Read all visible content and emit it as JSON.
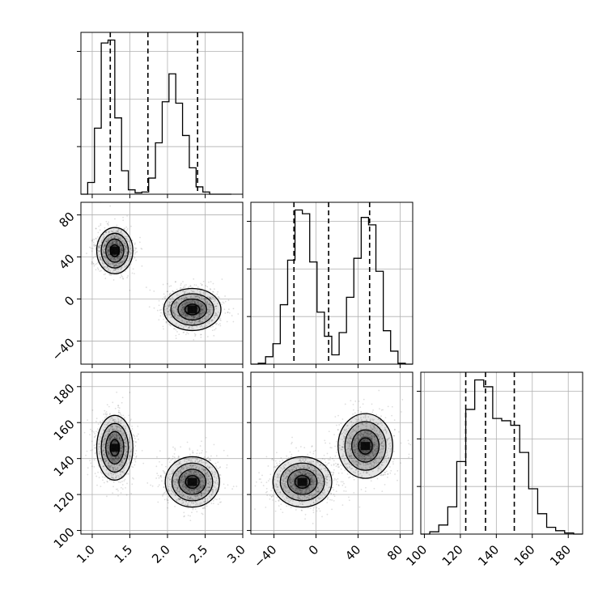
{
  "chart_data": {
    "type": "corner",
    "title": "",
    "variables": [
      "",
      "",
      ""
    ],
    "grid": true,
    "ranges": [
      [
        0.85,
        3.0
      ],
      [
        -62,
        92
      ],
      [
        98,
        188
      ]
    ],
    "ticks": [
      {
        "values": [
          1.0,
          1.5,
          2.0,
          2.5,
          3.0
        ],
        "labels": [
          "1.0",
          "1.5",
          "2.0",
          "2.5",
          "3.0"
        ]
      },
      {
        "values": [
          -40,
          0,
          40,
          80
        ],
        "labels": [
          "−40",
          "0",
          "40",
          "80"
        ]
      },
      {
        "values": [
          100,
          120,
          140,
          160,
          180
        ],
        "labels": [
          "100",
          "120",
          "140",
          "160",
          "180"
        ]
      }
    ],
    "histograms": [
      {
        "variable": 0,
        "bin_edges": [
          0.85,
          0.94,
          1.03,
          1.12,
          1.21,
          1.3,
          1.39,
          1.48,
          1.57,
          1.66,
          1.75,
          1.84,
          1.93,
          2.02,
          2.11,
          2.2,
          2.29,
          2.38,
          2.47,
          2.56,
          2.65,
          2.74,
          2.85
        ],
        "counts": [
          0,
          80,
          450,
          1030,
          1050,
          520,
          160,
          30,
          10,
          15,
          110,
          350,
          630,
          820,
          620,
          400,
          180,
          50,
          15,
          0,
          0,
          0
        ],
        "quantiles": [
          1.24,
          1.74,
          2.4
        ]
      },
      {
        "variable": 1,
        "bin_edges": [
          -62,
          -55,
          -48,
          -41,
          -34,
          -27,
          -20,
          -13,
          -6,
          1,
          8,
          15,
          22,
          29,
          36,
          43,
          50,
          57,
          64,
          71,
          78,
          85,
          92
        ],
        "counts": [
          0,
          5,
          40,
          110,
          320,
          560,
          830,
          810,
          550,
          280,
          150,
          50,
          170,
          360,
          570,
          790,
          750,
          500,
          180,
          70,
          5,
          0
        ],
        "quantiles": [
          -21,
          12,
          51
        ]
      },
      {
        "variable": 2,
        "bin_edges": [
          98,
          103,
          108,
          113,
          118,
          123,
          128,
          133,
          138,
          143,
          148,
          153,
          158,
          163,
          168,
          173,
          178,
          183,
          188
        ],
        "counts": [
          0,
          10,
          40,
          120,
          320,
          550,
          680,
          650,
          510,
          500,
          480,
          360,
          200,
          90,
          30,
          15,
          5,
          0
        ],
        "quantiles": [
          123,
          134,
          150
        ]
      }
    ],
    "scatter_pairs": [
      {
        "x_variable": 0,
        "y_variable": 1,
        "clusters": [
          {
            "center": [
              1.3,
              46
            ],
            "spread": [
              0.12,
              11
            ],
            "rotation_deg": 0
          },
          {
            "center": [
              2.33,
              -10
            ],
            "spread": [
              0.19,
              10
            ],
            "rotation_deg": 0
          }
        ]
      },
      {
        "x_variable": 0,
        "y_variable": 2,
        "clusters": [
          {
            "center": [
              1.3,
              146
            ],
            "spread": [
              0.12,
              9
            ],
            "rotation_deg": 0
          },
          {
            "center": [
              2.33,
              127
            ],
            "spread": [
              0.18,
              7
            ],
            "rotation_deg": 0
          }
        ]
      },
      {
        "x_variable": 1,
        "y_variable": 2,
        "clusters": [
          {
            "center": [
              -13,
              127
            ],
            "spread": [
              14,
              7
            ],
            "rotation_deg": 0
          },
          {
            "center": [
              47,
              147
            ],
            "spread": [
              13,
              9
            ],
            "rotation_deg": 0
          }
        ]
      }
    ],
    "colors": {
      "line": "#000000",
      "grid": "#b0b0b0",
      "points": "#000000"
    }
  }
}
